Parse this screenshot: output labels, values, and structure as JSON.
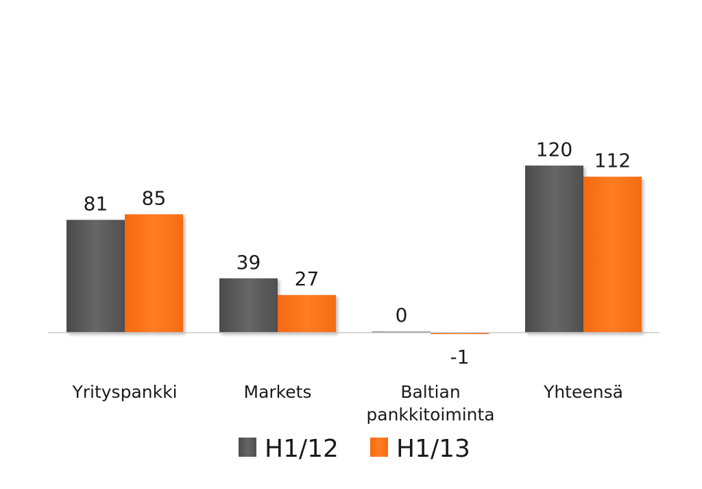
{
  "chart_data": {
    "type": "bar",
    "categories": [
      "Yrityspankki",
      "Markets",
      "Baltian pankkitoiminta",
      "Yhteensä"
    ],
    "category_lines": [
      [
        "Yrityspankki"
      ],
      [
        "Markets"
      ],
      [
        "Baltian",
        "pankkitoiminta"
      ],
      [
        "Yhteensä"
      ]
    ],
    "series": [
      {
        "name": "H1/12",
        "color": "#5a5a5a",
        "values": [
          81,
          39,
          0,
          120
        ]
      },
      {
        "name": "H1/13",
        "color": "#ff7518",
        "values": [
          85,
          27,
          -1,
          112
        ]
      }
    ],
    "data_labels": [
      [
        "81",
        "39",
        "0",
        "120"
      ],
      [
        "85",
        "27",
        "-1",
        "112"
      ]
    ],
    "ylim": [
      -1,
      130
    ],
    "grid": false,
    "legend_position": "bottom"
  }
}
